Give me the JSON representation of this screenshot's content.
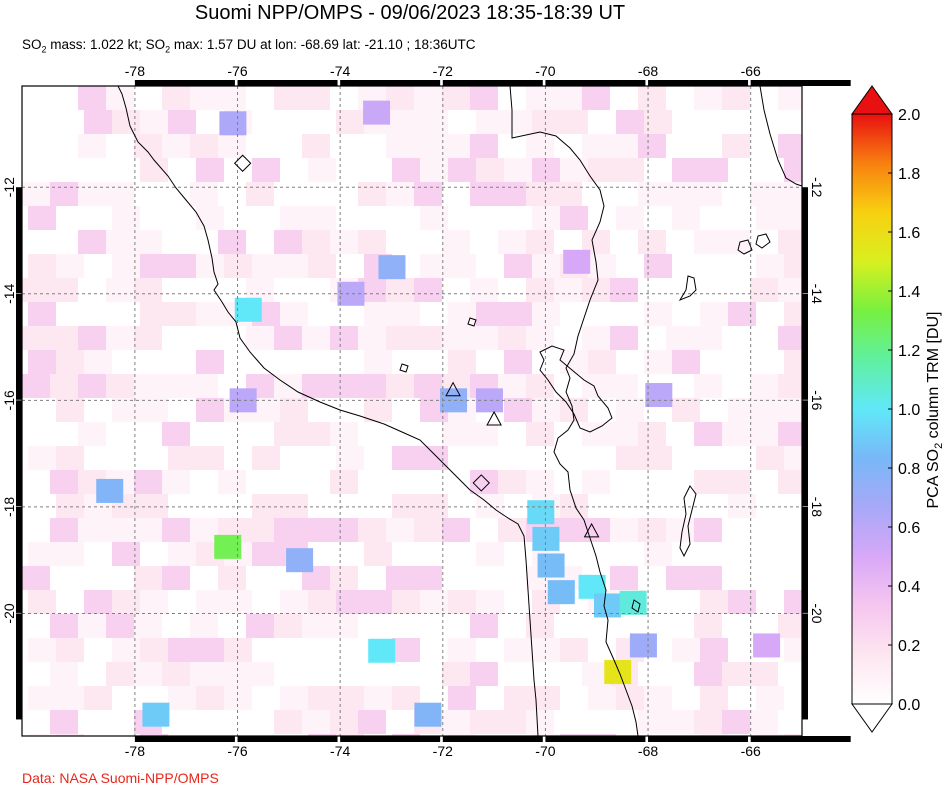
{
  "title": "Suomi NPP/OMPS - 09/06/2023 18:35-18:39 UT",
  "subtitle": {
    "mass_prefix": "SO",
    "mass_sub": "2",
    "mass_text": " mass: 1.022 kt; SO",
    "max_sub": "2",
    "max_text": " max: 1.57 DU at lon: -68.69 lat: -21.10 ; 18:36UTC"
  },
  "credit": "Data: NASA Suomi-NPP/OMPS",
  "map": {
    "lon_min": -80.2,
    "lon_max": -65.0,
    "lat_min": -22.3,
    "lat_max": -10.1,
    "lon_ticks": [
      "-78",
      "-76",
      "-74",
      "-72",
      "-70",
      "-68",
      "-66"
    ],
    "lat_ticks": [
      "-12",
      "-14",
      "-16",
      "-18",
      "-20"
    ],
    "lon_tick_values": [
      -78,
      -76,
      -74,
      -72,
      -70,
      -68,
      -66
    ],
    "lat_tick_values": [
      -12,
      -14,
      -16,
      -18,
      -20
    ],
    "volcanoes": [
      {
        "lon": -71.8,
        "lat": -15.8,
        "shape": "triangle"
      },
      {
        "lon": -71.0,
        "lat": -16.35,
        "shape": "triangle"
      },
      {
        "lon": -69.1,
        "lat": -18.45,
        "shape": "triangle"
      },
      {
        "lon": -75.9,
        "lat": -11.55,
        "shape": "diamond"
      },
      {
        "lon": -71.25,
        "lat": -17.55,
        "shape": "diamond"
      }
    ],
    "pixels": [
      {
        "lon": -77.6,
        "lat": -21.9,
        "v": 0.9
      },
      {
        "lon": -74.8,
        "lat": -19.0,
        "v": 0.75
      },
      {
        "lon": -76.2,
        "lat": -18.75,
        "v": 1.3
      },
      {
        "lon": -78.5,
        "lat": -17.7,
        "v": 0.8
      },
      {
        "lon": -75.8,
        "lat": -14.3,
        "v": 1.0
      },
      {
        "lon": -73.0,
        "lat": -13.5,
        "v": 0.75
      },
      {
        "lon": -73.8,
        "lat": -14.0,
        "v": 0.6
      },
      {
        "lon": -76.1,
        "lat": -10.8,
        "v": 0.65
      },
      {
        "lon": -73.3,
        "lat": -10.6,
        "v": 0.55
      },
      {
        "lon": -71.8,
        "lat": -16.0,
        "v": 0.75
      },
      {
        "lon": -71.1,
        "lat": -16.0,
        "v": 0.6
      },
      {
        "lon": -75.9,
        "lat": -16.0,
        "v": 0.6
      },
      {
        "lon": -70.1,
        "lat": -18.1,
        "v": 0.95
      },
      {
        "lon": -70.0,
        "lat": -18.6,
        "v": 0.9
      },
      {
        "lon": -69.9,
        "lat": -19.1,
        "v": 0.85
      },
      {
        "lon": -69.7,
        "lat": -19.6,
        "v": 0.85
      },
      {
        "lon": -69.1,
        "lat": -19.5,
        "v": 1.0
      },
      {
        "lon": -68.8,
        "lat": -19.85,
        "v": 0.9
      },
      {
        "lon": -68.3,
        "lat": -19.8,
        "v": 1.05
      },
      {
        "lon": -68.1,
        "lat": -20.6,
        "v": 0.7
      },
      {
        "lon": -68.6,
        "lat": -21.1,
        "v": 1.57
      },
      {
        "lon": -67.8,
        "lat": -15.9,
        "v": 0.6
      },
      {
        "lon": -69.4,
        "lat": -13.4,
        "v": 0.5
      },
      {
        "lon": -65.7,
        "lat": -20.6,
        "v": 0.5
      },
      {
        "lon": -73.2,
        "lat": -20.7,
        "v": 1.0
      },
      {
        "lon": -72.3,
        "lat": -21.9,
        "v": 0.8
      }
    ]
  },
  "colorbar": {
    "label_prefix": "PCA SO",
    "label_sub": "2",
    "label_suffix": " column TRM [DU]",
    "min": 0.0,
    "max": 2.0,
    "ticks": [
      "0.0",
      "0.2",
      "0.4",
      "0.6",
      "0.8",
      "1.0",
      "1.2",
      "1.4",
      "1.6",
      "1.8",
      "2.0"
    ],
    "tick_values": [
      0.0,
      0.2,
      0.4,
      0.6,
      0.8,
      1.0,
      1.2,
      1.4,
      1.6,
      1.8,
      2.0
    ],
    "stops": [
      "#ffffff",
      "#fde6f0",
      "#f6c6f0",
      "#d8a8f8",
      "#a8a8f8",
      "#78b8f8",
      "#60e8f8",
      "#60f0a0",
      "#78f040",
      "#d8f020",
      "#f8d010",
      "#f88010",
      "#e81010"
    ]
  }
}
